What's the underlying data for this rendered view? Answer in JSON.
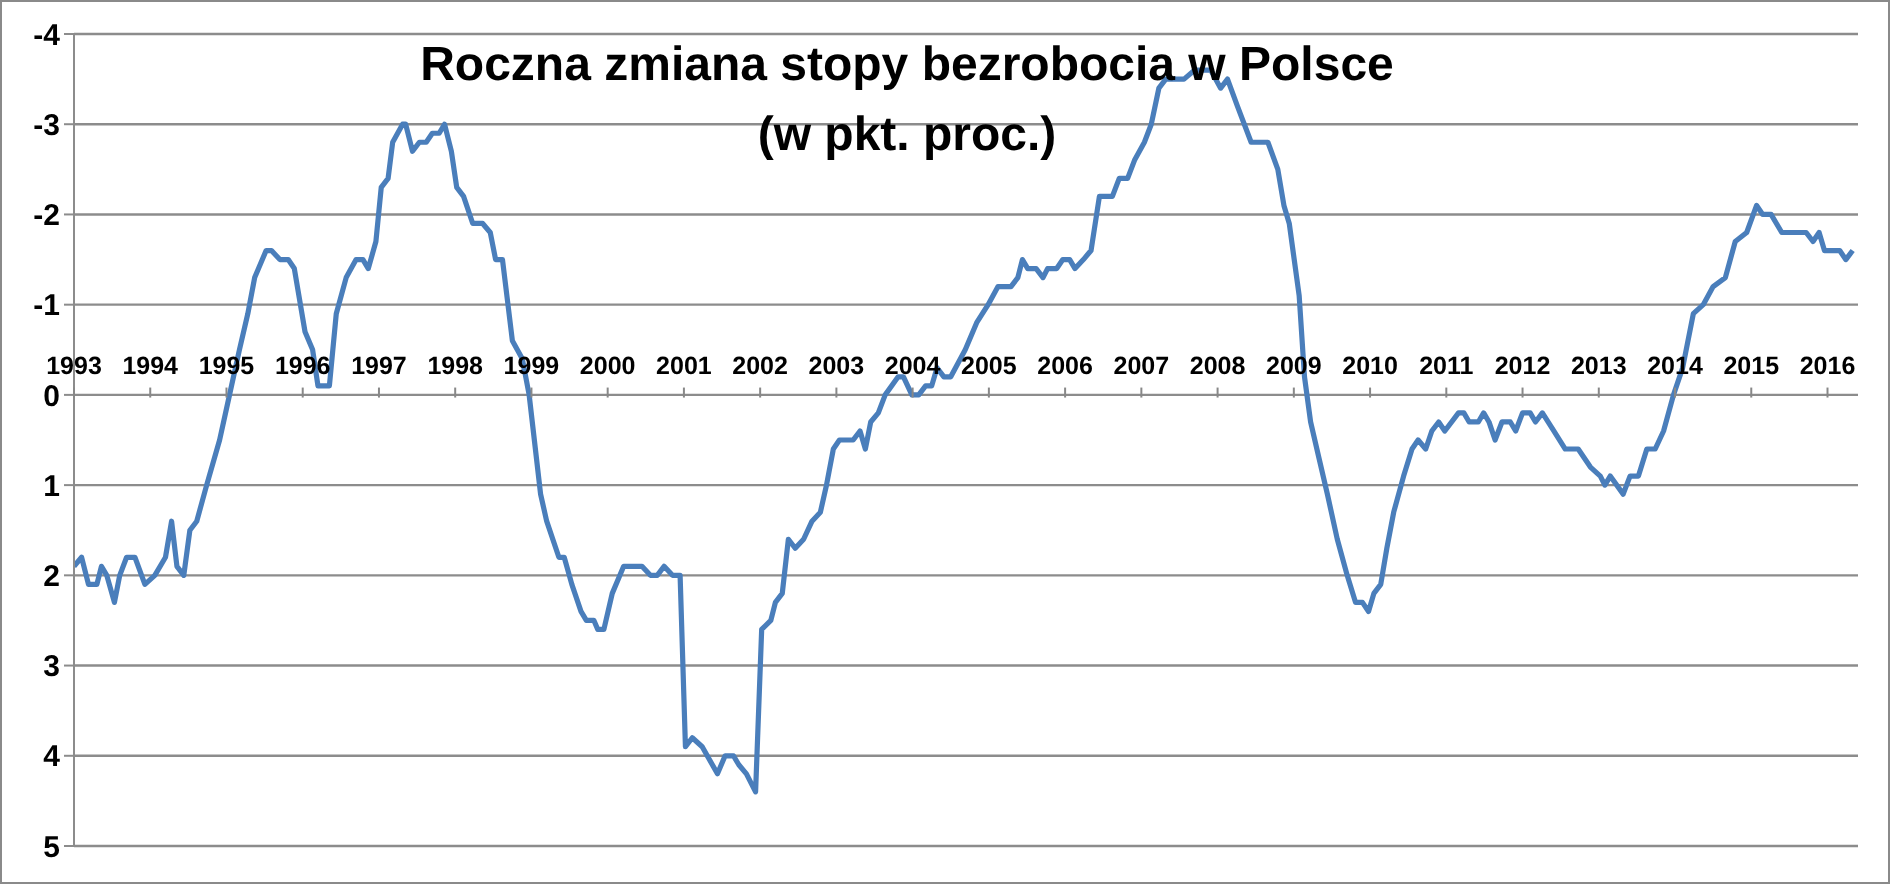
{
  "chart_data": {
    "type": "line",
    "title": "Roczna zmiana stopy bezrobocia w Polsce",
    "subtitle": "(w pkt. proc.)",
    "x": [
      1993.0,
      1993.1,
      1993.19,
      1993.3,
      1993.36,
      1993.43,
      1993.53,
      1993.6,
      1993.69,
      1993.8,
      1993.93,
      1994.06,
      1994.2,
      1994.28,
      1994.35,
      1994.44,
      1994.52,
      1994.61,
      1994.74,
      1994.91,
      1995.04,
      1995.17,
      1995.28,
      1995.37,
      1995.52,
      1995.59,
      1995.7,
      1995.81,
      1995.89,
      1996.03,
      1996.13,
      1996.2,
      1996.35,
      1996.44,
      1996.57,
      1996.7,
      1996.79,
      1996.86,
      1996.96,
      1997.03,
      1997.12,
      1997.18,
      1997.31,
      1997.35,
      1997.44,
      1997.53,
      1997.62,
      1997.7,
      1997.79,
      1997.86,
      1997.95,
      1998.02,
      1998.11,
      1998.23,
      1998.36,
      1998.46,
      1998.53,
      1998.62,
      1998.75,
      1998.88,
      1998.97,
      1999.12,
      1999.2,
      1999.36,
      1999.43,
      1999.53,
      1999.65,
      1999.72,
      1999.82,
      1999.87,
      1999.95,
      2000.06,
      2000.21,
      2000.45,
      2000.56,
      2000.65,
      2000.74,
      2000.85,
      2000.95,
      2001.02,
      2001.11,
      2001.24,
      2001.44,
      2001.54,
      2001.65,
      2001.72,
      2001.82,
      2001.94,
      2002.02,
      2002.14,
      2002.2,
      2002.29,
      2002.37,
      2002.46,
      2002.57,
      2002.68,
      2002.79,
      2002.87,
      2002.96,
      2003.04,
      2003.22,
      2003.31,
      2003.38,
      2003.45,
      2003.55,
      2003.64,
      2003.81,
      2003.88,
      2003.99,
      2004.08,
      2004.17,
      2004.25,
      2004.32,
      2004.41,
      2004.5,
      2004.69,
      2004.84,
      2004.99,
      2005.12,
      2005.29,
      2005.38,
      2005.44,
      2005.51,
      2005.62,
      2005.71,
      2005.77,
      2005.89,
      2005.97,
      2006.06,
      2006.13,
      2006.24,
      2006.34,
      2006.45,
      2006.53,
      2006.62,
      2006.71,
      2006.82,
      2006.91,
      2007.04,
      2007.13,
      2007.23,
      2007.32,
      2007.56,
      2007.7,
      2007.91,
      2008.04,
      2008.13,
      2008.26,
      2008.44,
      2008.66,
      2008.79,
      2008.87,
      2008.94,
      2009.07,
      2009.14,
      2009.22,
      2009.33,
      2009.44,
      2009.57,
      2009.7,
      2009.81,
      2009.9,
      2009.98,
      2010.05,
      2010.14,
      2010.22,
      2010.31,
      2010.44,
      2010.55,
      2010.63,
      2010.73,
      2010.81,
      2010.9,
      2010.98,
      2011.16,
      2011.23,
      2011.3,
      2011.42,
      2011.49,
      2011.56,
      2011.64,
      2011.73,
      2011.84,
      2011.91,
      2012.0,
      2012.1,
      2012.17,
      2012.26,
      2012.41,
      2012.56,
      2012.73,
      2012.89,
      2013.02,
      2013.08,
      2013.15,
      2013.32,
      2013.41,
      2013.52,
      2013.63,
      2013.74,
      2013.85,
      2013.98,
      2014.1,
      2014.24,
      2014.37,
      2014.5,
      2014.66,
      2014.79,
      2014.94,
      2015.07,
      2015.15,
      2015.26,
      2015.4,
      2015.72,
      2015.81,
      2015.89,
      2015.96,
      2016.16,
      2016.24,
      2016.33
    ],
    "series": [
      {
        "color": "#4a7ebb",
        "values": [
          1.9,
          1.8,
          2.1,
          2.1,
          1.9,
          2.0,
          2.3,
          2.0,
          1.8,
          1.8,
          2.1,
          2.0,
          1.8,
          1.4,
          1.9,
          2.0,
          1.5,
          1.4,
          1.0,
          0.5,
          0.0,
          -0.5,
          -0.9,
          -1.3,
          -1.6,
          -1.6,
          -1.5,
          -1.5,
          -1.4,
          -0.7,
          -0.5,
          -0.1,
          -0.1,
          -0.9,
          -1.3,
          -1.5,
          -1.5,
          -1.4,
          -1.7,
          -2.3,
          -2.4,
          -2.8,
          -3.0,
          -3.0,
          -2.7,
          -2.8,
          -2.8,
          -2.9,
          -2.9,
          -3.0,
          -2.7,
          -2.3,
          -2.2,
          -1.9,
          -1.9,
          -1.8,
          -1.5,
          -1.5,
          -0.6,
          -0.4,
          0.0,
          1.1,
          1.4,
          1.8,
          1.8,
          2.1,
          2.4,
          2.5,
          2.5,
          2.6,
          2.6,
          2.2,
          1.9,
          1.9,
          2.0,
          2.0,
          1.9,
          2.0,
          2.0,
          3.9,
          3.8,
          3.9,
          4.2,
          4.0,
          4.0,
          4.1,
          4.2,
          4.4,
          2.6,
          2.5,
          2.3,
          2.2,
          1.6,
          1.7,
          1.6,
          1.4,
          1.3,
          1.0,
          0.6,
          0.5,
          0.5,
          0.4,
          0.6,
          0.3,
          0.2,
          0.0,
          -0.2,
          -0.2,
          0.0,
          0.0,
          -0.1,
          -0.1,
          -0.3,
          -0.2,
          -0.2,
          -0.5,
          -0.8,
          -1.0,
          -1.2,
          -1.2,
          -1.3,
          -1.5,
          -1.4,
          -1.4,
          -1.3,
          -1.4,
          -1.4,
          -1.5,
          -1.5,
          -1.4,
          -1.5,
          -1.6,
          -2.2,
          -2.2,
          -2.2,
          -2.4,
          -2.4,
          -2.6,
          -2.8,
          -3.0,
          -3.4,
          -3.5,
          -3.5,
          -3.6,
          -3.6,
          -3.4,
          -3.5,
          -3.2,
          -2.8,
          -2.8,
          -2.5,
          -2.1,
          -1.9,
          -1.1,
          -0.2,
          0.3,
          0.7,
          1.1,
          1.6,
          2.0,
          2.3,
          2.3,
          2.4,
          2.2,
          2.1,
          1.7,
          1.3,
          0.9,
          0.6,
          0.5,
          0.6,
          0.4,
          0.3,
          0.4,
          0.2,
          0.2,
          0.3,
          0.3,
          0.2,
          0.3,
          0.5,
          0.3,
          0.3,
          0.4,
          0.2,
          0.2,
          0.3,
          0.2,
          0.4,
          0.6,
          0.6,
          0.8,
          0.9,
          1.0,
          0.9,
          1.1,
          0.9,
          0.9,
          0.6,
          0.6,
          0.4,
          0.0,
          -0.3,
          -0.9,
          -1.0,
          -1.2,
          -1.3,
          -1.7,
          -1.8,
          -2.1,
          -2.0,
          -2.0,
          -1.8,
          -1.8,
          -1.7,
          -1.8,
          -1.6,
          -1.6,
          -1.5,
          -1.6
        ]
      }
    ],
    "xlim": [
      1993,
      2016.4
    ],
    "xticks": [
      1993,
      1994,
      1995,
      1996,
      1997,
      1998,
      1999,
      2000,
      2001,
      2002,
      2003,
      2004,
      2005,
      2006,
      2007,
      2008,
      2009,
      2010,
      2011,
      2012,
      2013,
      2014,
      2015,
      2016
    ],
    "ylim": [
      5,
      -4
    ],
    "yticks": [
      -4,
      -3,
      -2,
      -1,
      0,
      1,
      2,
      3,
      4,
      5
    ],
    "grid": "y",
    "marker": "none",
    "line_style": "solid"
  }
}
